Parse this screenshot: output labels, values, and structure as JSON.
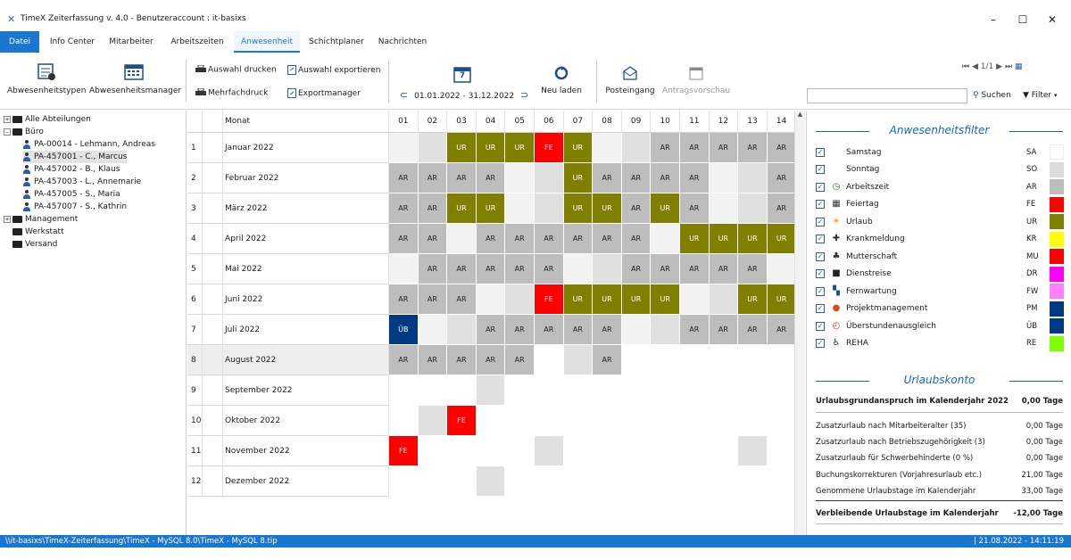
{
  "window": {
    "title": "TimeX Zeiterfassung v. 4.0 - Benutzeraccount : it-basixs",
    "minimize": "–",
    "maximize": "☐",
    "close": "✕"
  },
  "menu": {
    "tabs": [
      "Datei",
      "Info Center",
      "Mitarbeiter",
      "Arbeitszeiten",
      "Anwesenheit",
      "Schichtplaner",
      "Nachrichten"
    ],
    "active": "Anwesenheit"
  },
  "ribbon": {
    "abwesenheitstypen": "Abwesenheitstypen",
    "abwesenheitsmanager": "Abwesenheitsmanager",
    "auswahl_drucken": "Auswahl drucken",
    "mehrfachdruck": "Mehrfachdruck",
    "auswahl_exportieren": "Auswahl exportieren",
    "exportmanager": "Exportmanager",
    "calendar_day": "7",
    "date_range": "01.01.2022 - 31.12.2022",
    "neu_laden": "Neu laden",
    "posteingang": "Posteingang",
    "antragsvorschau": "Antragsvorschau",
    "pager": "1/1",
    "search_placeholder": "",
    "suchen": "Suchen",
    "filter": "Filter"
  },
  "tree": {
    "nodes": [
      {
        "label": "Alle Abteilungen",
        "level": 0,
        "type": "folder",
        "expander": "+"
      },
      {
        "label": "Büro",
        "level": 0,
        "type": "folder-open",
        "expander": "–"
      },
      {
        "label": "PA-00014 - Lehmann, Andreas",
        "level": 1,
        "type": "person"
      },
      {
        "label": "PA-457001 - C., Marcus",
        "level": 1,
        "type": "person",
        "selected": true
      },
      {
        "label": "PA-457002 - B., Klaus",
        "level": 1,
        "type": "person"
      },
      {
        "label": "PA-457003 - L., Annemarie",
        "level": 1,
        "type": "person"
      },
      {
        "label": "PA-457005 - S., Maria",
        "level": 1,
        "type": "person"
      },
      {
        "label": "PA-457007 - S., Kathrin",
        "level": 1,
        "type": "person"
      },
      {
        "label": "Management",
        "level": 0,
        "type": "folder",
        "expander": "+"
      },
      {
        "label": "Werkstatt",
        "level": 0,
        "type": "folder"
      },
      {
        "label": "Versand",
        "level": 0,
        "type": "folder"
      }
    ]
  },
  "calendar": {
    "month_header": "Monat",
    "days": [
      "01",
      "02",
      "03",
      "04",
      "05",
      "06",
      "07",
      "08",
      "09",
      "10",
      "11",
      "12",
      "13",
      "14"
    ],
    "months": [
      {
        "num": "1",
        "name": "Januar 2022",
        "cells": [
          "",
          "w",
          "UR",
          "UR",
          "UR",
          "FE",
          "UR",
          "",
          "w",
          "AR",
          "AR",
          "AR",
          "AR",
          "AR"
        ]
      },
      {
        "num": "2",
        "name": "Februar 2022",
        "cells": [
          "AR",
          "AR",
          "AR",
          "AR",
          "",
          "w",
          "UR",
          "AR",
          "AR",
          "AR",
          "AR",
          "",
          "w",
          "AR"
        ]
      },
      {
        "num": "3",
        "name": "März 2022",
        "cells": [
          "AR",
          "AR",
          "UR",
          "UR",
          "",
          "w",
          "UR",
          "UR",
          "AR",
          "UR",
          "AR",
          "",
          "w",
          "AR"
        ]
      },
      {
        "num": "4",
        "name": "April 2022",
        "cells": [
          "AR",
          "AR",
          "",
          "AR",
          "AR",
          "AR",
          "AR",
          "AR",
          "AR",
          "",
          "UR",
          "UR",
          "UR",
          "UR"
        ]
      },
      {
        "num": "5",
        "name": "Mai 2022",
        "cells": [
          "",
          "AR",
          "AR",
          "AR",
          "AR",
          "AR",
          "",
          "w",
          "AR",
          "AR",
          "AR",
          "AR",
          "AR",
          ""
        ]
      },
      {
        "num": "6",
        "name": "Juni 2022",
        "cells": [
          "AR",
          "AR",
          "AR",
          "",
          "w",
          "FE",
          "UR",
          "UR",
          "UR",
          "UR",
          "",
          "w",
          "UR",
          "UR"
        ]
      },
      {
        "num": "7",
        "name": "Juli 2022",
        "cells": [
          "ÜB",
          "",
          "w",
          "AR",
          "AR",
          "AR",
          "AR",
          "AR",
          "",
          "w",
          "AR",
          "AR",
          "AR",
          "AR"
        ]
      },
      {
        "num": "8",
        "name": "August 2022",
        "cells": [
          "AR",
          "AR",
          "AR",
          "AR",
          "AR",
          "",
          "w",
          "AR",
          "",
          "",
          "",
          "",
          "",
          ""
        ]
      },
      {
        "num": "9",
        "name": "September 2022",
        "cells": [
          "",
          "",
          "",
          "w",
          "",
          "",
          "",
          "",
          "",
          "",
          "",
          "",
          "",
          ""
        ]
      },
      {
        "num": "10",
        "name": "Oktober 2022",
        "cells": [
          "",
          "w",
          "FE",
          "",
          "",
          "",
          "",
          "",
          "",
          "",
          "",
          "",
          "",
          ""
        ]
      },
      {
        "num": "11",
        "name": "November 2022",
        "cells": [
          "FE",
          "",
          "",
          "",
          "",
          "w",
          "",
          "",
          "",
          "",
          "",
          "",
          "w",
          ""
        ]
      },
      {
        "num": "12",
        "name": "Dezember 2022",
        "cells": [
          "",
          "",
          "",
          "w",
          "",
          "",
          "",
          "",
          "",
          "",
          "",
          "",
          "",
          ""
        ]
      }
    ]
  },
  "filter": {
    "title": "Anwesenheitsfilter",
    "items": [
      {
        "label": "Samstag",
        "code": "SA",
        "color": "#ffffff",
        "icon": ""
      },
      {
        "label": "Sonntag",
        "code": "SO",
        "color": "#dcdcdc",
        "icon": ""
      },
      {
        "label": "Arbeitszeit",
        "code": "AR",
        "color": "#bdbdbd",
        "icon": "clock-icon"
      },
      {
        "label": "Feiertag",
        "code": "FE",
        "color": "#ff0000",
        "icon": "calendar-icon"
      },
      {
        "label": "Urlaub",
        "code": "UR",
        "color": "#808000",
        "icon": "sun-icon"
      },
      {
        "label": "Krankmeldung",
        "code": "KR",
        "color": "#ffff00",
        "icon": "medical-case-icon"
      },
      {
        "label": "Mutterschaft",
        "code": "MU",
        "color": "#ff0000",
        "icon": "stroller-icon"
      },
      {
        "label": "Dienstreise",
        "code": "DR",
        "color": "#ff00ff",
        "icon": "car-icon"
      },
      {
        "label": "Fernwartung",
        "code": "FW",
        "color": "#ff80ff",
        "icon": "windows-icon"
      },
      {
        "label": "Projektmanagement",
        "code": "PM",
        "color": "#003a80",
        "icon": "project-icon"
      },
      {
        "label": "Überstundenausgleich",
        "code": "ÜB",
        "color": "#003a80",
        "icon": "overtime-clock-icon"
      },
      {
        "label": "REHA",
        "code": "RE",
        "color": "#80ff00",
        "icon": "reha-icon"
      }
    ]
  },
  "urlaubskonto": {
    "title": "Urlaubskonto",
    "rows": [
      {
        "label": "Urlaubsgrundanspruch im Kalenderjahr 2022",
        "value": "0,00",
        "unit": "Tage",
        "bold": true
      },
      {
        "label": "Zusatzurlaub nach Mitarbeiteralter (35)",
        "value": "0,00",
        "unit": "Tage"
      },
      {
        "label": "Zusatzurlaub nach Betriebszugehörigkeit (3)",
        "value": "0,00",
        "unit": "Tage"
      },
      {
        "label": "Zusatzurlaub für Schwerbehinderte (0 %)",
        "value": "0,00",
        "unit": "Tage"
      },
      {
        "label": "Buchungskorrekturen (Vorjahresurlaub etc.)",
        "value": "21,00",
        "unit": "Tage"
      },
      {
        "label": "Genommene Urlaubstage im Kalenderjahr",
        "value": "33,00",
        "unit": "Tage"
      },
      {
        "label": "Verbleibende Urlaubstage im Kalenderjahr",
        "value": "-12,00",
        "unit": "Tage",
        "bold": true
      }
    ]
  },
  "status": {
    "path": "\\\\it-basixs\\TimeX-Zeiterfassung\\TimeX - MySQL 8.0\\TimeX - MySQL 8.tip",
    "datetime": "| 21.08.2022 - 14:11:19"
  },
  "colors": {
    "AR": "#bdbdbd",
    "UR": "#808000",
    "FE": "#ff0000",
    "ÜB": "#003a80",
    "w": "#e0e0e0",
    "accent": "#1976d2"
  }
}
